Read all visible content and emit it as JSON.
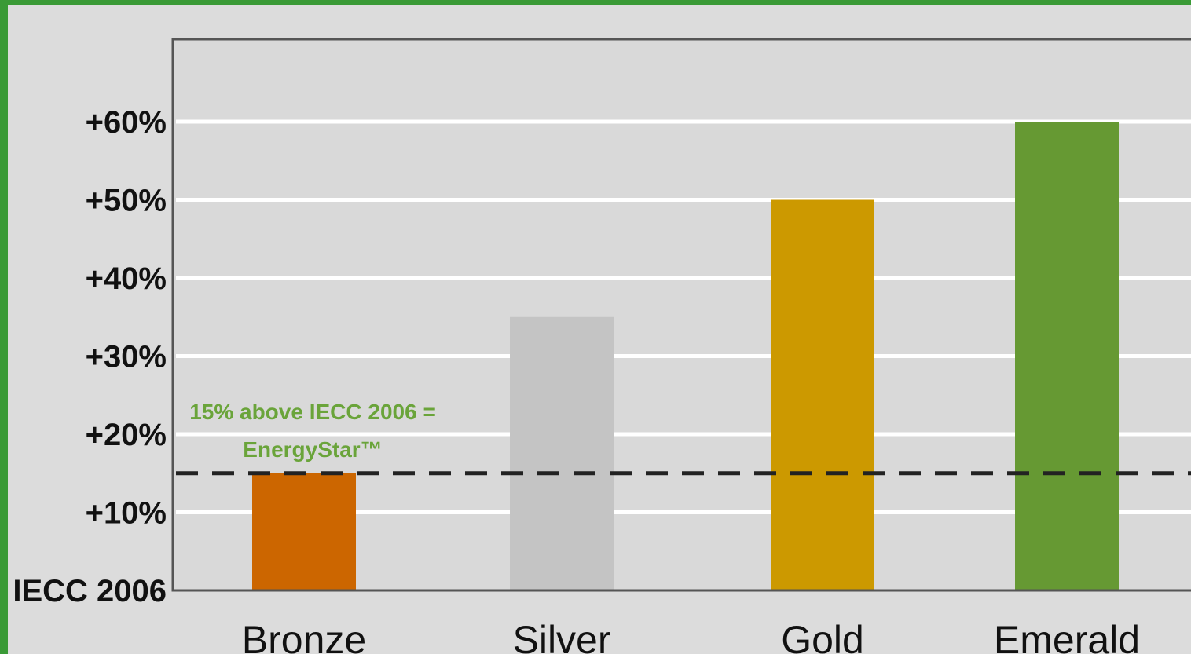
{
  "chart_data": {
    "type": "bar",
    "categories": [
      "Bronze",
      "Silver",
      "Gold",
      "Emerald"
    ],
    "values": [
      15,
      35,
      50,
      60
    ],
    "colors": [
      "#cc6600",
      "#c4c4c4",
      "#cc9900",
      "#669933"
    ],
    "ylim": [
      0,
      70
    ],
    "ytick_values": [
      0,
      10,
      20,
      30,
      40,
      50,
      60
    ],
    "ytick_labels": [
      "IECC 2006",
      "+10%",
      "+20%",
      "+30%",
      "+40%",
      "+50%",
      "+60%"
    ],
    "grid": true,
    "reference_line": {
      "value": 15,
      "style": "dashed",
      "label_line1": "15% above IECC 2006 =",
      "label_line2": "EnergyStar™"
    }
  }
}
